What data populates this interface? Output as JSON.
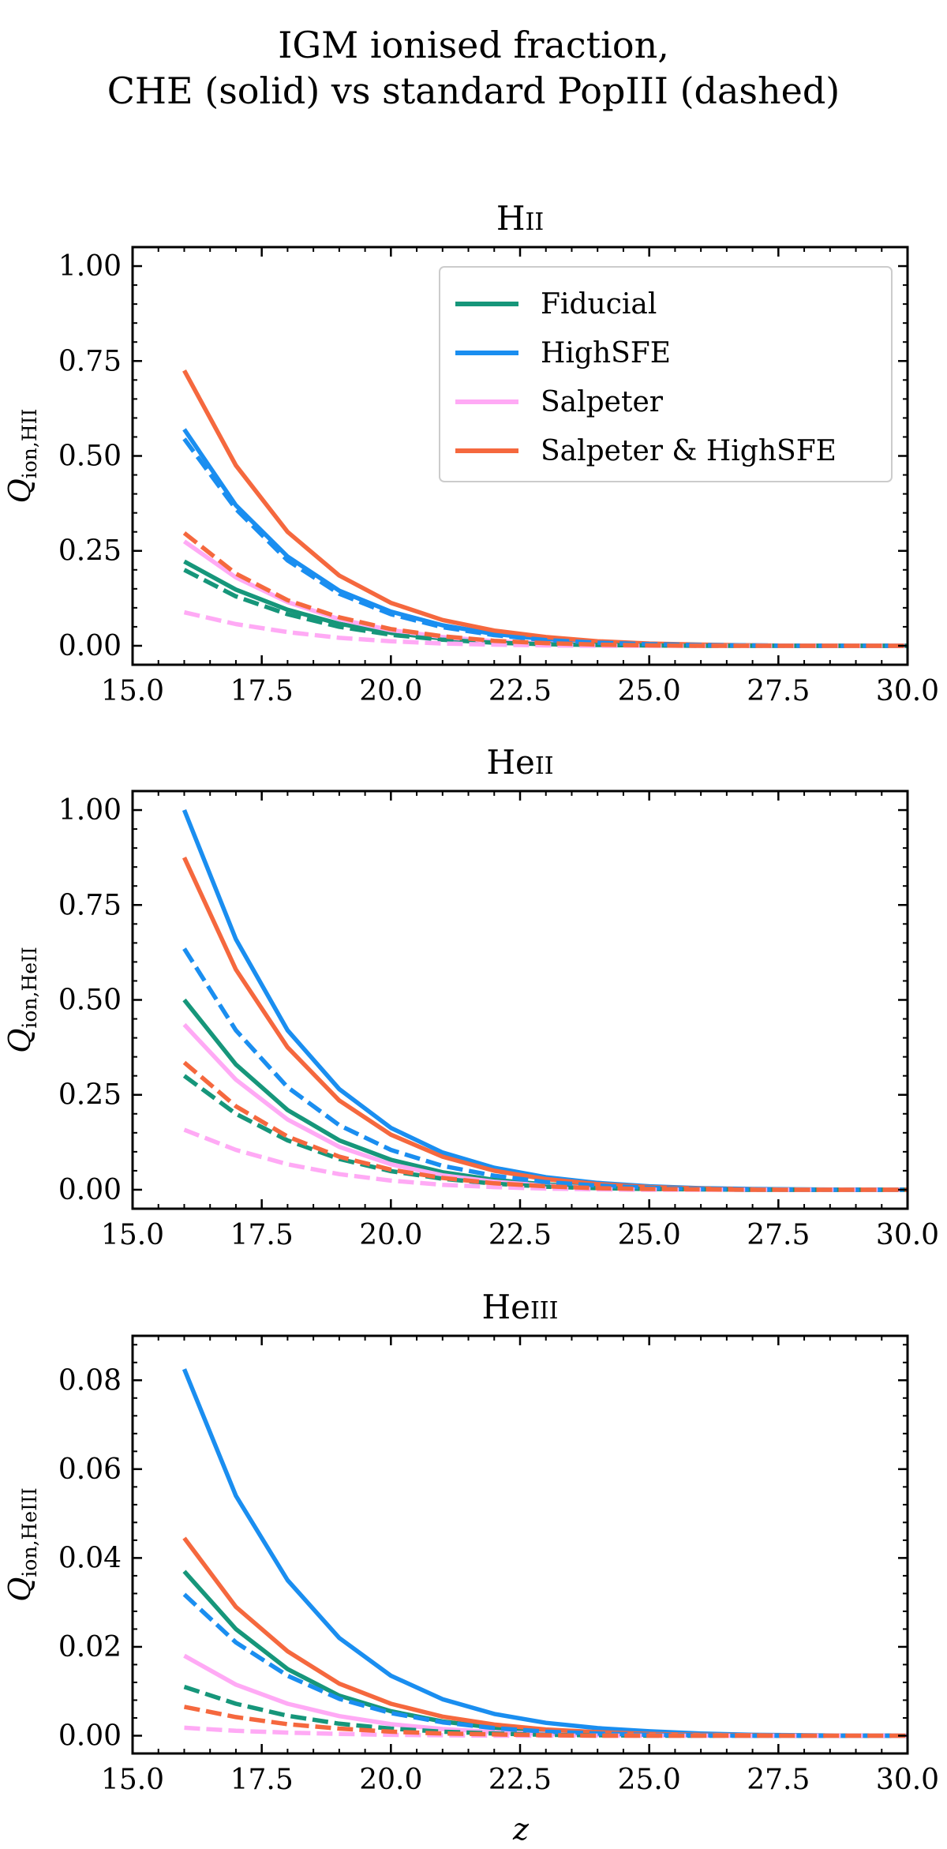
{
  "figure": {
    "title_line1": "IGM ionised fraction,",
    "title_line2": "CHE (solid) vs standard PopIII (dashed)",
    "xlabel": "z"
  },
  "colors": {
    "Fiducial": "#16967a",
    "HighSFE": "#1a8ef0",
    "Salpeter": "#ffaaf5",
    "Salpeter & HighSFE": "#f5683e"
  },
  "chart_data": [
    {
      "type": "line",
      "title": "HII",
      "title_main": "H",
      "title_sc": "II",
      "ylabel": "Q",
      "ylabel_sub": "ion,HII",
      "xlim": [
        15,
        30
      ],
      "ylim": [
        -0.05,
        1.05
      ],
      "xticks": [
        15.0,
        17.5,
        20.0,
        22.5,
        25.0,
        27.5,
        30.0
      ],
      "xtick_labels": [
        "15.0",
        "17.5",
        "20.0",
        "22.5",
        "25.0",
        "27.5",
        "30.0"
      ],
      "yticks": [
        0.0,
        0.25,
        0.5,
        0.75,
        1.0
      ],
      "ytick_labels": [
        "0.00",
        "0.25",
        "0.50",
        "0.75",
        "1.00"
      ],
      "legend": {
        "placement": "top-right",
        "entries": [
          "Fiducial",
          "HighSFE",
          "Salpeter",
          "Salpeter & HighSFE"
        ]
      },
      "x": [
        16,
        17,
        18,
        19,
        20,
        21,
        22,
        23,
        24,
        25,
        26,
        27,
        28,
        29,
        30
      ],
      "series": [
        {
          "name": "Fiducial",
          "style": "solid",
          "values": [
            0.222,
            0.148,
            0.095,
            0.058,
            0.034,
            0.019,
            0.01,
            0.005,
            0.003,
            0.001,
            0.001,
            0.0,
            0.0,
            0.0,
            0.0
          ]
        },
        {
          "name": "HighSFE",
          "style": "solid",
          "values": [
            0.57,
            0.37,
            0.235,
            0.145,
            0.09,
            0.054,
            0.031,
            0.017,
            0.009,
            0.005,
            0.002,
            0.001,
            0.0,
            0.0,
            0.0
          ]
        },
        {
          "name": "Salpeter",
          "style": "solid",
          "values": [
            0.275,
            0.18,
            0.115,
            0.07,
            0.041,
            0.023,
            0.012,
            0.006,
            0.003,
            0.001,
            0.0,
            0.0,
            0.0,
            0.0,
            0.0
          ]
        },
        {
          "name": "Salpeter & HighSFE",
          "style": "solid",
          "values": [
            0.725,
            0.475,
            0.3,
            0.185,
            0.113,
            0.068,
            0.04,
            0.023,
            0.012,
            0.006,
            0.003,
            0.001,
            0.0,
            0.0,
            0.0
          ]
        },
        {
          "name": "Fiducial",
          "style": "dashed",
          "values": [
            0.2,
            0.13,
            0.083,
            0.05,
            0.029,
            0.016,
            0.008,
            0.004,
            0.002,
            0.001,
            0.0,
            0.0,
            0.0,
            0.0,
            0.0
          ]
        },
        {
          "name": "HighSFE",
          "style": "dashed",
          "values": [
            0.545,
            0.36,
            0.225,
            0.137,
            0.083,
            0.049,
            0.028,
            0.015,
            0.008,
            0.004,
            0.002,
            0.001,
            0.0,
            0.0,
            0.0
          ]
        },
        {
          "name": "Salpeter",
          "style": "dashed",
          "values": [
            0.088,
            0.057,
            0.036,
            0.021,
            0.012,
            0.006,
            0.003,
            0.001,
            0.0,
            0.0,
            0.0,
            0.0,
            0.0,
            0.0,
            0.0
          ]
        },
        {
          "name": "Salpeter & HighSFE",
          "style": "dashed",
          "values": [
            0.297,
            0.19,
            0.12,
            0.075,
            0.044,
            0.025,
            0.013,
            0.007,
            0.003,
            0.001,
            0.0,
            0.0,
            0.0,
            0.0,
            0.0
          ]
        }
      ]
    },
    {
      "type": "line",
      "title": "HeII",
      "title_main": "He",
      "title_sc": "II",
      "ylabel": "Q",
      "ylabel_sub": "ion,HeII",
      "xlim": [
        15,
        30
      ],
      "ylim": [
        -0.05,
        1.05
      ],
      "xticks": [
        15.0,
        17.5,
        20.0,
        22.5,
        25.0,
        27.5,
        30.0
      ],
      "xtick_labels": [
        "15.0",
        "17.5",
        "20.0",
        "22.5",
        "25.0",
        "27.5",
        "30.0"
      ],
      "yticks": [
        0.0,
        0.25,
        0.5,
        0.75,
        1.0
      ],
      "ytick_labels": [
        "0.00",
        "0.25",
        "0.50",
        "0.75",
        "1.00"
      ],
      "x": [
        16,
        17,
        18,
        19,
        20,
        21,
        22,
        23,
        24,
        25,
        26,
        27,
        28,
        29,
        30
      ],
      "series": [
        {
          "name": "Fiducial",
          "style": "solid",
          "values": [
            0.5,
            0.33,
            0.21,
            0.13,
            0.079,
            0.046,
            0.026,
            0.014,
            0.007,
            0.003,
            0.001,
            0.0,
            0.0,
            0.0,
            0.0
          ]
        },
        {
          "name": "HighSFE",
          "style": "solid",
          "values": [
            1.0,
            0.66,
            0.42,
            0.265,
            0.163,
            0.098,
            0.058,
            0.033,
            0.018,
            0.009,
            0.004,
            0.002,
            0.001,
            0.0,
            0.0
          ]
        },
        {
          "name": "Salpeter",
          "style": "solid",
          "values": [
            0.435,
            0.29,
            0.185,
            0.113,
            0.067,
            0.038,
            0.021,
            0.011,
            0.005,
            0.002,
            0.001,
            0.0,
            0.0,
            0.0,
            0.0
          ]
        },
        {
          "name": "Salpeter & HighSFE",
          "style": "solid",
          "values": [
            0.875,
            0.58,
            0.375,
            0.235,
            0.145,
            0.087,
            0.05,
            0.028,
            0.015,
            0.007,
            0.003,
            0.001,
            0.0,
            0.0,
            0.0
          ]
        },
        {
          "name": "Fiducial",
          "style": "dashed",
          "values": [
            0.3,
            0.2,
            0.13,
            0.081,
            0.049,
            0.029,
            0.016,
            0.008,
            0.004,
            0.002,
            0.001,
            0.0,
            0.0,
            0.0,
            0.0
          ]
        },
        {
          "name": "HighSFE",
          "style": "dashed",
          "values": [
            0.635,
            0.42,
            0.27,
            0.17,
            0.105,
            0.063,
            0.037,
            0.02,
            0.011,
            0.005,
            0.002,
            0.001,
            0.0,
            0.0,
            0.0
          ]
        },
        {
          "name": "Salpeter",
          "style": "dashed",
          "values": [
            0.158,
            0.105,
            0.067,
            0.041,
            0.024,
            0.013,
            0.007,
            0.003,
            0.001,
            0.0,
            0.0,
            0.0,
            0.0,
            0.0,
            0.0
          ]
        },
        {
          "name": "Salpeter & HighSFE",
          "style": "dashed",
          "values": [
            0.335,
            0.22,
            0.14,
            0.087,
            0.053,
            0.031,
            0.017,
            0.009,
            0.004,
            0.002,
            0.001,
            0.0,
            0.0,
            0.0,
            0.0
          ]
        }
      ]
    },
    {
      "type": "line",
      "title": "HeIII",
      "title_main": "He",
      "title_sc": "III",
      "ylabel": "Q",
      "ylabel_sub": "ion,HeIII",
      "xlim": [
        15,
        30
      ],
      "ylim": [
        -0.004,
        0.09
      ],
      "xticks": [
        15.0,
        17.5,
        20.0,
        22.5,
        25.0,
        27.5,
        30.0
      ],
      "xtick_labels": [
        "15.0",
        "17.5",
        "20.0",
        "22.5",
        "25.0",
        "27.5",
        "30.0"
      ],
      "yticks": [
        0.0,
        0.02,
        0.04,
        0.06,
        0.08
      ],
      "ytick_labels": [
        "0.00",
        "0.02",
        "0.04",
        "0.06",
        "0.08"
      ],
      "x": [
        16,
        17,
        18,
        19,
        20,
        21,
        22,
        23,
        24,
        25,
        26,
        27,
        28,
        29,
        30
      ],
      "series": [
        {
          "name": "Fiducial",
          "style": "solid",
          "values": [
            0.037,
            0.024,
            0.015,
            0.009,
            0.0055,
            0.0032,
            0.0018,
            0.001,
            0.0005,
            0.0002,
            0.0001,
            0.0,
            0.0,
            0.0,
            0.0
          ]
        },
        {
          "name": "HighSFE",
          "style": "solid",
          "values": [
            0.0825,
            0.054,
            0.035,
            0.022,
            0.0135,
            0.0082,
            0.0049,
            0.0029,
            0.0017,
            0.001,
            0.0005,
            0.0002,
            0.0001,
            0.0,
            0.0
          ]
        },
        {
          "name": "Salpeter",
          "style": "solid",
          "values": [
            0.018,
            0.0115,
            0.0072,
            0.0044,
            0.0026,
            0.0015,
            0.0008,
            0.0004,
            0.0002,
            0.0001,
            0.0,
            0.0,
            0.0,
            0.0,
            0.0
          ]
        },
        {
          "name": "Salpeter & HighSFE",
          "style": "solid",
          "values": [
            0.0445,
            0.029,
            0.019,
            0.0117,
            0.0072,
            0.0043,
            0.0025,
            0.0014,
            0.0008,
            0.0004,
            0.0002,
            0.0001,
            0.0,
            0.0,
            0.0
          ]
        },
        {
          "name": "Fiducial",
          "style": "dashed",
          "values": [
            0.011,
            0.0072,
            0.0045,
            0.0027,
            0.0016,
            0.0009,
            0.0005,
            0.0002,
            0.0001,
            0.0,
            0.0,
            0.0,
            0.0,
            0.0,
            0.0
          ]
        },
        {
          "name": "HighSFE",
          "style": "dashed",
          "values": [
            0.0318,
            0.021,
            0.0135,
            0.0083,
            0.0051,
            0.003,
            0.0017,
            0.0009,
            0.0005,
            0.0002,
            0.0001,
            0.0,
            0.0,
            0.0,
            0.0
          ]
        },
        {
          "name": "Salpeter",
          "style": "dashed",
          "values": [
            0.0018,
            0.0011,
            0.0007,
            0.0004,
            0.0002,
            0.0001,
            0.0,
            0.0,
            0.0,
            0.0,
            0.0,
            0.0,
            0.0,
            0.0,
            0.0
          ]
        },
        {
          "name": "Salpeter & HighSFE",
          "style": "dashed",
          "values": [
            0.0065,
            0.0042,
            0.0026,
            0.0016,
            0.0009,
            0.0005,
            0.0003,
            0.0001,
            0.0,
            0.0,
            0.0,
            0.0,
            0.0,
            0.0,
            0.0
          ]
        }
      ]
    }
  ]
}
